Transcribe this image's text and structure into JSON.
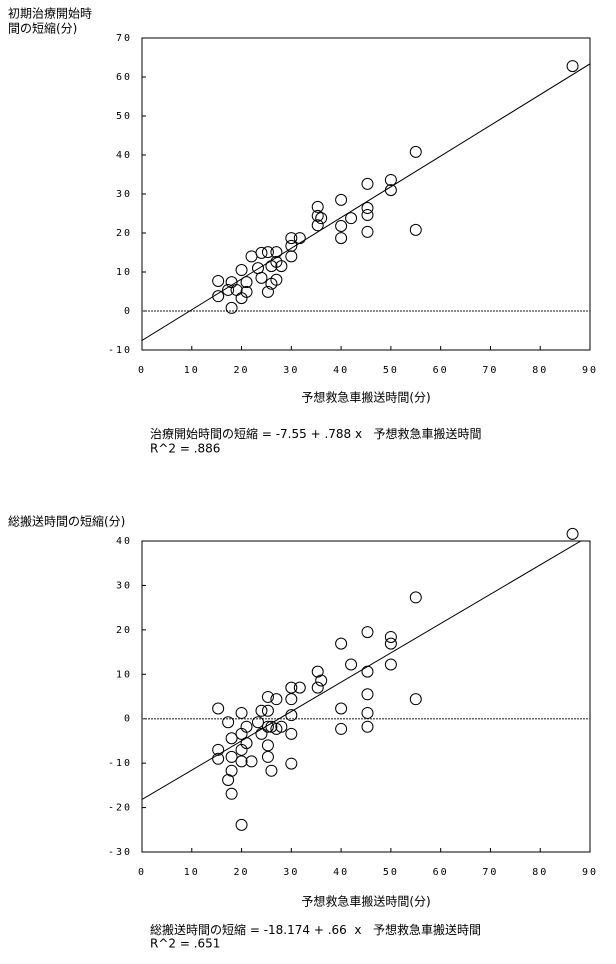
{
  "chart_data": [
    {
      "type": "scatter",
      "ylabel": [
        "初期治療開始時",
        "間の短縮(分)"
      ],
      "xlabel": "予想救急車搬送時間(分)",
      "equation": [
        "治療開始時間の短縮 = ",
        {
          "value": -7.55,
          "label": "-7.55"
        },
        " + ",
        {
          "value": 0.788,
          "label": ".788"
        },
        " x   予想救急車搬送時間"
      ],
      "r2": "R^2 = .886",
      "xlim": [
        0,
        90
      ],
      "xticks": [
        0,
        10,
        20,
        30,
        40,
        50,
        60,
        70,
        80,
        90
      ],
      "ylim": [
        -10,
        70
      ],
      "yticks": [
        -10,
        0,
        10,
        20,
        30,
        40,
        50,
        60,
        70
      ],
      "reference_line": 0,
      "color": "#000000",
      "x": [
        15.3,
        15.3,
        17.3,
        18,
        18,
        19,
        20,
        20,
        21,
        21,
        22,
        23.3,
        24,
        24,
        25.3,
        25.3,
        26,
        26,
        27,
        27,
        27,
        28,
        30,
        30,
        30,
        31.7,
        35.3,
        35.3,
        35.3,
        36,
        40,
        40,
        40,
        42,
        45.3,
        45.3,
        45.3,
        45.3,
        50,
        50,
        55,
        55,
        86.5
      ],
      "values": [
        7.7,
        3.8,
        5.4,
        7.4,
        0.8,
        5.4,
        10.5,
        3.3,
        7.4,
        4.9,
        14,
        11,
        8.5,
        14.9,
        15.1,
        4.9,
        11.5,
        7,
        15.1,
        12.6,
        8,
        11.5,
        18.7,
        16.7,
        14,
        18.7,
        26.7,
        24.4,
        22,
        23.8,
        28.5,
        21.8,
        18.7,
        23.8,
        32.6,
        26.4,
        24.6,
        20.3,
        33.6,
        31,
        40.8,
        20.8,
        62.8
      ]
    },
    {
      "type": "scatter",
      "ylabel": [
        "総搬送時間の短縮(分)"
      ],
      "xlabel": "予想救急車搬送時間(分)",
      "equation": [
        "総搬送時間の短縮 = ",
        {
          "value": -18.174,
          "label": "-18.174"
        },
        " + ",
        {
          "value": 0.66,
          "label": ".66"
        },
        "  x   予想救急車搬送時間"
      ],
      "r2": "R^2 = .651",
      "xlim": [
        0,
        90
      ],
      "xticks": [
        0,
        10,
        20,
        30,
        40,
        50,
        60,
        70,
        80,
        90
      ],
      "ylim": [
        -30,
        40
      ],
      "yticks": [
        -30,
        -20,
        -10,
        0,
        10,
        20,
        30,
        40
      ],
      "reference_line": 0,
      "color": "#000000",
      "x": [
        15.3,
        15.3,
        15.3,
        17.3,
        17.3,
        18,
        18,
        18,
        18,
        20,
        20,
        20,
        20,
        20,
        21,
        21,
        22,
        23.3,
        24,
        24,
        25.3,
        25.3,
        25.3,
        25.3,
        25.3,
        26,
        26,
        27,
        27,
        28,
        30,
        30,
        30,
        30,
        30,
        31.7,
        35.3,
        35.3,
        36,
        40,
        40,
        40,
        42,
        45.3,
        45.3,
        45.3,
        45.3,
        45.3,
        50,
        50,
        50,
        55,
        55,
        86.5
      ],
      "values": [
        2.3,
        -7,
        -9,
        -0.8,
        -13.8,
        -4.4,
        -8.6,
        -11.7,
        -16.9,
        1.3,
        -3.4,
        -7,
        -9.6,
        -23.9,
        -1.8,
        -5.5,
        -9.6,
        -0.8,
        1.8,
        -3.4,
        4.9,
        1.8,
        -1.8,
        -6,
        -8.6,
        -1.8,
        -11.7,
        4.4,
        -2.3,
        -1.8,
        7,
        4.4,
        0.8,
        -3.4,
        -10.1,
        7,
        10.6,
        7,
        8.6,
        16.9,
        2.3,
        -2.3,
        12.2,
        19.5,
        10.6,
        5.5,
        1.3,
        -1.8,
        18.4,
        12.2,
        16.9,
        27.3,
        4.4,
        41.6
      ]
    }
  ]
}
